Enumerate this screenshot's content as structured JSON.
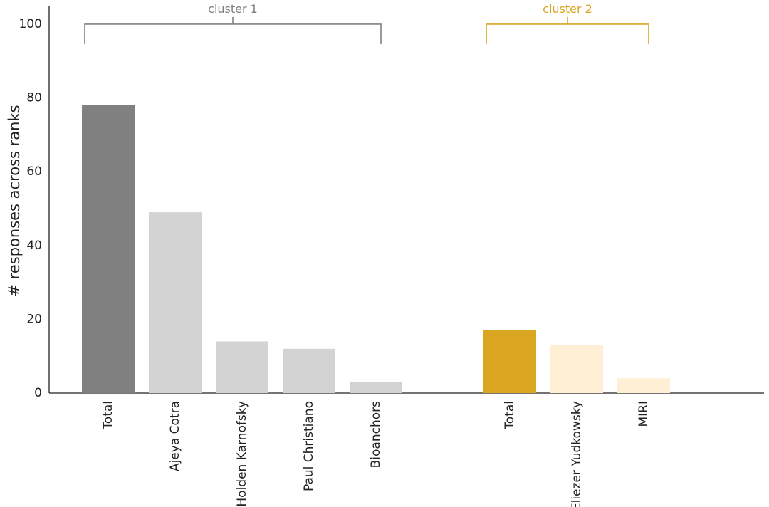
{
  "chart_data": {
    "type": "bar",
    "title": "",
    "xlabel": "",
    "ylabel": "# responses across ranks",
    "ylim": [
      0,
      105
    ],
    "yticks": [
      0,
      20,
      40,
      60,
      80,
      100
    ],
    "grid": false,
    "clusters": [
      {
        "label": "cluster 1",
        "color": "#808080",
        "bars": [
          {
            "category": "Total",
            "value": 78,
            "color": "#808080"
          },
          {
            "category": "Ajeya Cotra",
            "value": 49,
            "color": "#d3d3d3"
          },
          {
            "category": "Holden Karnofsky",
            "value": 14,
            "color": "#d3d3d3"
          },
          {
            "category": "Paul Christiano",
            "value": 12,
            "color": "#d3d3d3"
          },
          {
            "category": "Bioanchors",
            "value": 3,
            "color": "#d3d3d3"
          }
        ]
      },
      {
        "label": "cluster 2",
        "color": "#daa520",
        "bars": [
          {
            "category": "Total",
            "value": 17,
            "color": "#daa520"
          },
          {
            "category": "Eliezer Yudkowsky",
            "value": 13,
            "color": "#ffefd5"
          },
          {
            "category": "MIRI",
            "value": 4,
            "color": "#ffefd5"
          }
        ]
      }
    ]
  }
}
